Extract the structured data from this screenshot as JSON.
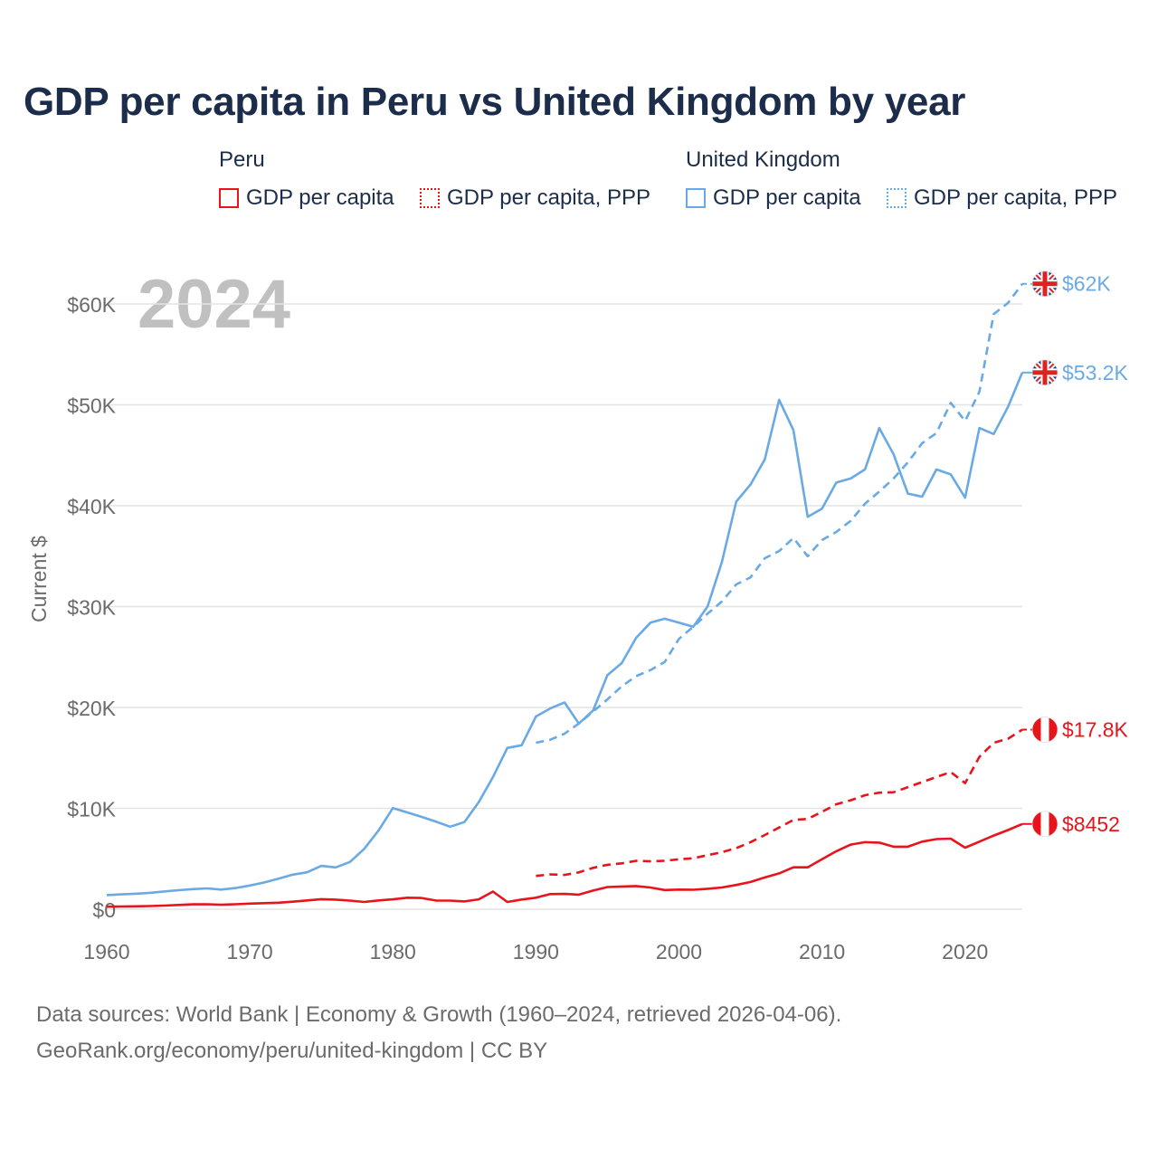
{
  "colors": {
    "peru": "#e8141c",
    "uk": "#6aaae4",
    "title": "#1b2d4a",
    "axis_text": "#6b6b6b",
    "year_label": "#c0c0c0",
    "grid": "#e4e4e4"
  },
  "legend": {
    "groups": [
      {
        "name": "Peru",
        "items": [
          {
            "label": "GDP per capita",
            "style": "solid"
          },
          {
            "label": "GDP per capita, PPP",
            "style": "dotted"
          }
        ]
      },
      {
        "name": "United Kingdom",
        "items": [
          {
            "label": "GDP per capita",
            "style": "solid"
          },
          {
            "label": "GDP per capita, PPP",
            "style": "dotted"
          }
        ]
      }
    ]
  },
  "footer": {
    "line1": "Data sources: World Bank | Economy & Growth (1960–2024, retrieved 2026-04-06).",
    "line2": "GeoRank.org/economy/peru/united-kingdom | CC BY"
  },
  "chart_data": {
    "type": "line",
    "title": "GDP per capita in Peru vs United Kingdom by year",
    "year_label": "2024",
    "xlabel": "",
    "ylabel": "Current $",
    "xlim": [
      1960,
      2024
    ],
    "ylim": [
      0,
      62000
    ],
    "x_ticks": [
      1960,
      1970,
      1980,
      1990,
      2000,
      2010,
      2020
    ],
    "y_ticks": [
      {
        "value": 0,
        "label": "$0"
      },
      {
        "value": 10000,
        "label": "$10K"
      },
      {
        "value": 20000,
        "label": "$20K"
      },
      {
        "value": 30000,
        "label": "$30K"
      },
      {
        "value": 40000,
        "label": "$40K"
      },
      {
        "value": 50000,
        "label": "$50K"
      },
      {
        "value": 60000,
        "label": "$60K"
      }
    ],
    "series": [
      {
        "name": "United Kingdom GDP per capita PPP",
        "country": "uk",
        "dash": true,
        "end_label": "$62K",
        "flag": "uk",
        "x": [
          1990,
          1991,
          1992,
          1993,
          1994,
          1995,
          1996,
          1997,
          1998,
          1999,
          2000,
          2001,
          2002,
          2003,
          2004,
          2005,
          2006,
          2007,
          2008,
          2009,
          2010,
          2011,
          2012,
          2013,
          2014,
          2015,
          2016,
          2017,
          2018,
          2019,
          2020,
          2021,
          2022,
          2023,
          2024
        ],
        "y": [
          16500,
          16800,
          17400,
          18400,
          19600,
          20800,
          22100,
          23100,
          23700,
          24500,
          26800,
          28000,
          29300,
          30500,
          32200,
          32900,
          34800,
          35500,
          36800,
          35000,
          36600,
          37400,
          38500,
          40200,
          41400,
          42700,
          44300,
          46200,
          47200,
          50200,
          48400,
          51300,
          59000,
          60100,
          62000
        ]
      },
      {
        "name": "United Kingdom GDP per capita",
        "country": "uk",
        "dash": false,
        "end_label": "$53.2K",
        "flag": "uk",
        "x": [
          1960,
          1961,
          1962,
          1963,
          1964,
          1965,
          1966,
          1967,
          1968,
          1969,
          1970,
          1971,
          1972,
          1973,
          1974,
          1975,
          1976,
          1977,
          1978,
          1979,
          1980,
          1981,
          1982,
          1983,
          1984,
          1985,
          1986,
          1987,
          1988,
          1989,
          1990,
          1991,
          1992,
          1993,
          1994,
          1995,
          1996,
          1997,
          1998,
          1999,
          2000,
          2001,
          2002,
          2003,
          2004,
          2005,
          2006,
          2007,
          2008,
          2009,
          2010,
          2011,
          2012,
          2013,
          2014,
          2015,
          2016,
          2017,
          2018,
          2019,
          2020,
          2021,
          2022,
          2023,
          2024
        ],
        "y": [
          1400,
          1470,
          1530,
          1620,
          1760,
          1880,
          1990,
          2060,
          1950,
          2100,
          2350,
          2650,
          3020,
          3430,
          3660,
          4300,
          4140,
          4680,
          5980,
          7800,
          10030,
          9600,
          9160,
          8690,
          8180,
          8640,
          10600,
          13100,
          15990,
          16250,
          19100,
          19900,
          20500,
          18400,
          19700,
          23200,
          24400,
          26900,
          28400,
          28800,
          28400,
          28000,
          30000,
          34400,
          40400,
          42100,
          44600,
          50500,
          47500,
          38900,
          39700,
          42300,
          42700,
          43600,
          47700,
          45100,
          41200,
          40900,
          43600,
          43100,
          40800,
          47700,
          47100,
          49800,
          53200
        ]
      },
      {
        "name": "Peru GDP per capita PPP",
        "country": "peru",
        "dash": true,
        "end_label": "$17.8K",
        "flag": "peru",
        "x": [
          1990,
          1991,
          1992,
          1993,
          1994,
          1995,
          1996,
          1997,
          1998,
          1999,
          2000,
          2001,
          2002,
          2003,
          2004,
          2005,
          2006,
          2007,
          2008,
          2009,
          2010,
          2011,
          2012,
          2013,
          2014,
          2015,
          2016,
          2017,
          2018,
          2019,
          2020,
          2021,
          2022,
          2023,
          2024
        ],
        "y": [
          3300,
          3450,
          3400,
          3650,
          4100,
          4400,
          4550,
          4800,
          4750,
          4800,
          4950,
          5050,
          5350,
          5650,
          6050,
          6650,
          7350,
          8100,
          8850,
          8950,
          9650,
          10400,
          10800,
          11300,
          11550,
          11600,
          12100,
          12600,
          13100,
          13600,
          12500,
          15100,
          16500,
          16900,
          17800
        ]
      },
      {
        "name": "Peru GDP per capita",
        "country": "peru",
        "dash": false,
        "end_label": "$8452",
        "flag": "peru",
        "x": [
          1960,
          1961,
          1962,
          1963,
          1964,
          1965,
          1966,
          1967,
          1968,
          1969,
          1970,
          1971,
          1972,
          1973,
          1974,
          1975,
          1976,
          1977,
          1978,
          1979,
          1980,
          1981,
          1982,
          1983,
          1984,
          1985,
          1986,
          1987,
          1988,
          1989,
          1990,
          1991,
          1992,
          1993,
          1994,
          1995,
          1996,
          1997,
          1998,
          1999,
          2000,
          2001,
          2002,
          2003,
          2004,
          2005,
          2006,
          2007,
          2008,
          2009,
          2010,
          2011,
          2012,
          2013,
          2014,
          2015,
          2016,
          2017,
          2018,
          2019,
          2020,
          2021,
          2022,
          2023,
          2024
        ],
        "y": [
          250,
          270,
          290,
          310,
          360,
          420,
          480,
          490,
          450,
          490,
          560,
          600,
          650,
          740,
          870,
          1000,
          950,
          850,
          720,
          870,
          980,
          1140,
          1110,
          860,
          850,
          770,
          980,
          1750,
          720,
          960,
          1140,
          1500,
          1520,
          1440,
          1850,
          2200,
          2250,
          2300,
          2150,
          1900,
          1950,
          1930,
          2030,
          2150,
          2400,
          2700,
          3150,
          3550,
          4150,
          4150,
          4950,
          5750,
          6400,
          6650,
          6600,
          6200,
          6200,
          6700,
          6950,
          7000,
          6100,
          6700,
          7300,
          7850,
          8452
        ]
      }
    ]
  }
}
